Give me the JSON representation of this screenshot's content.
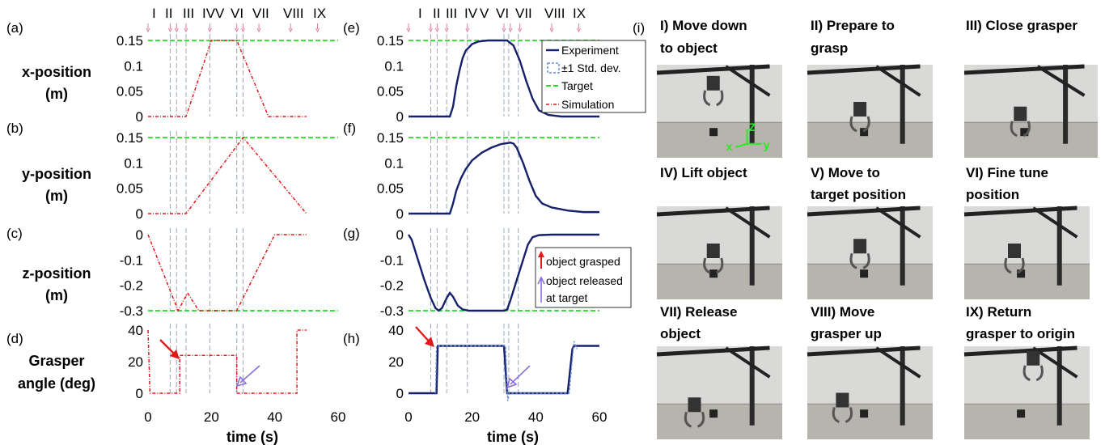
{
  "panel_labels": [
    "(a)",
    "(b)",
    "(c)",
    "(d)",
    "(e)",
    "(f)",
    "(g)",
    "(h)",
    "(i)"
  ],
  "row_labels": [
    [
      "x-position",
      "(m)"
    ],
    [
      "y-position",
      "(m)"
    ],
    [
      "z-position",
      "(m)"
    ],
    [
      "Grasper",
      "angle (deg)"
    ]
  ],
  "xlabel": "time (s)",
  "xticks": [
    0,
    20,
    40,
    60
  ],
  "phase_labels": [
    "I",
    "II",
    "III",
    "IV",
    "V",
    "VI",
    "VII",
    "VIII",
    "IX"
  ],
  "legend": [
    "Experiment",
    "±1 Std. dev.",
    "Target",
    "Simulation"
  ],
  "annotations": [
    "object grasped",
    "object released",
    "at target"
  ],
  "colors": {
    "experiment": "#16206b",
    "std": "#6b8fd6",
    "target": "#22dd22",
    "simulation": "#e0191b",
    "guide": "#9aaaba",
    "arrow_red": "#e0191b",
    "arrow_purple": "#8a6fe0",
    "phase_marker": "#e07aa0"
  },
  "photo_captions": [
    [
      "I) Move down",
      "to object"
    ],
    [
      "II) Prepare to",
      "grasp"
    ],
    [
      "III) Close grasper",
      ""
    ],
    [
      "IV) Lift object",
      ""
    ],
    [
      "V) Move to",
      "target position"
    ],
    [
      "VI) Fine tune",
      "position"
    ],
    [
      "VII) Release",
      "object"
    ],
    [
      "VIII) Move",
      "grasper up"
    ],
    [
      "IX) Return",
      "grasper  to origin"
    ]
  ],
  "axis_glyphs": {
    "z": "Z",
    "x": "x",
    "y": "y"
  },
  "chart_data": [
    {
      "id": "a",
      "type": "line",
      "ylabel": "x-position (m)",
      "yticks": [
        0,
        0.05,
        0.1,
        0.15
      ],
      "ylim": [
        0,
        0.15
      ],
      "xlim": [
        0,
        60
      ],
      "series": [
        {
          "name": "Target",
          "values": [
            [
              0,
              0.15
            ],
            [
              60,
              0.15
            ]
          ]
        },
        {
          "name": "Simulation",
          "values": [
            [
              0,
              0
            ],
            [
              12,
              0
            ],
            [
              20,
              0.15
            ],
            [
              28,
              0.15
            ],
            [
              38,
              0
            ],
            [
              50,
              0
            ]
          ]
        }
      ]
    },
    {
      "id": "b",
      "type": "line",
      "ylabel": "y-position (m)",
      "yticks": [
        0,
        0.05,
        0.1,
        0.15
      ],
      "ylim": [
        0,
        0.15
      ],
      "xlim": [
        0,
        60
      ],
      "series": [
        {
          "name": "Target",
          "values": [
            [
              0,
              0.15
            ],
            [
              60,
              0.15
            ]
          ]
        },
        {
          "name": "Simulation",
          "values": [
            [
              0,
              0
            ],
            [
              12,
              0
            ],
            [
              30,
              0.15
            ],
            [
              50,
              0
            ]
          ]
        }
      ]
    },
    {
      "id": "c",
      "type": "line",
      "ylabel": "z-position (m)",
      "yticks": [
        -0.3,
        -0.2,
        -0.1,
        0
      ],
      "ylim": [
        -0.3,
        0
      ],
      "xlim": [
        0,
        60
      ],
      "series": [
        {
          "name": "Target",
          "values": [
            [
              0,
              -0.3
            ],
            [
              60,
              -0.3
            ]
          ]
        },
        {
          "name": "Simulation",
          "values": [
            [
              0,
              0
            ],
            [
              9.5,
              -0.3
            ],
            [
              12.5,
              -0.23
            ],
            [
              16,
              -0.3
            ],
            [
              28,
              -0.3
            ],
            [
              40,
              0
            ],
            [
              50,
              0
            ]
          ]
        }
      ]
    },
    {
      "id": "d",
      "type": "line",
      "ylabel": "Grasper angle (deg)",
      "yticks": [
        0,
        20,
        40
      ],
      "ylim": [
        0,
        40
      ],
      "xlim": [
        0,
        60
      ],
      "series": [
        {
          "name": "Simulation",
          "values": [
            [
              0,
              40
            ],
            [
              0.6,
              0
            ],
            [
              10,
              0
            ],
            [
              10,
              24
            ],
            [
              28,
              24
            ],
            [
              28,
              0
            ],
            [
              47,
              0
            ],
            [
              47,
              40
            ],
            [
              50,
              40
            ]
          ]
        }
      ]
    },
    {
      "id": "e",
      "type": "line",
      "yticks": [
        0,
        0.05,
        0.1,
        0.15
      ],
      "ylim": [
        0,
        0.15
      ],
      "xlim": [
        0,
        60
      ],
      "series": [
        {
          "name": "Target",
          "values": [
            [
              0,
              0.15
            ],
            [
              60,
              0.15
            ]
          ]
        },
        {
          "name": "Experiment",
          "values": [
            [
              0,
              0
            ],
            [
              13,
              0
            ],
            [
              14,
              0.02
            ],
            [
              15,
              0.06
            ],
            [
              16,
              0.09
            ],
            [
              17,
              0.115
            ],
            [
              18,
              0.13
            ],
            [
              20,
              0.143
            ],
            [
              22,
              0.148
            ],
            [
              25,
              0.15
            ],
            [
              31,
              0.15
            ],
            [
              33,
              0.14
            ],
            [
              35,
              0.11
            ],
            [
              37,
              0.07
            ],
            [
              39,
              0.035
            ],
            [
              41,
              0.012
            ],
            [
              44,
              0.003
            ],
            [
              48,
              0
            ],
            [
              60,
              0
            ]
          ]
        }
      ]
    },
    {
      "id": "f",
      "type": "line",
      "yticks": [
        0,
        0.05,
        0.1,
        0.15
      ],
      "ylim": [
        0,
        0.15
      ],
      "xlim": [
        0,
        60
      ],
      "series": [
        {
          "name": "Target",
          "values": [
            [
              0,
              0.15
            ],
            [
              60,
              0.15
            ]
          ]
        },
        {
          "name": "Experiment",
          "values": [
            [
              0,
              0
            ],
            [
              13,
              0
            ],
            [
              14,
              0.02
            ],
            [
              15,
              0.045
            ],
            [
              16.5,
              0.07
            ],
            [
              18,
              0.088
            ],
            [
              20,
              0.105
            ],
            [
              23,
              0.12
            ],
            [
              26,
              0.13
            ],
            [
              29,
              0.137
            ],
            [
              32,
              0.14
            ],
            [
              33,
              0.138
            ],
            [
              34,
              0.13
            ],
            [
              36,
              0.1
            ],
            [
              38,
              0.065
            ],
            [
              40,
              0.035
            ],
            [
              42,
              0.02
            ],
            [
              45,
              0.012
            ],
            [
              50,
              0.006
            ],
            [
              55,
              0.003
            ],
            [
              60,
              0.003
            ]
          ]
        }
      ]
    },
    {
      "id": "g",
      "type": "line",
      "yticks": [
        -0.3,
        -0.2,
        -0.1,
        0
      ],
      "ylim": [
        -0.3,
        0
      ],
      "xlim": [
        0,
        60
      ],
      "series": [
        {
          "name": "Target",
          "values": [
            [
              0,
              -0.3
            ],
            [
              60,
              -0.3
            ]
          ]
        },
        {
          "name": "Experiment",
          "values": [
            [
              0,
              0
            ],
            [
              1,
              -0.02
            ],
            [
              3,
              -0.1
            ],
            [
              5,
              -0.18
            ],
            [
              7,
              -0.25
            ],
            [
              8.5,
              -0.29
            ],
            [
              9.5,
              -0.3
            ],
            [
              10.5,
              -0.29
            ],
            [
              12,
              -0.25
            ],
            [
              13,
              -0.23
            ],
            [
              14,
              -0.245
            ],
            [
              15.5,
              -0.28
            ],
            [
              17,
              -0.295
            ],
            [
              19,
              -0.3
            ],
            [
              30,
              -0.3
            ],
            [
              31,
              -0.295
            ],
            [
              32,
              -0.26
            ],
            [
              34,
              -0.18
            ],
            [
              36,
              -0.1
            ],
            [
              37.5,
              -0.04
            ],
            [
              39,
              -0.01
            ],
            [
              41,
              -0.002
            ],
            [
              45,
              0
            ],
            [
              60,
              0
            ]
          ]
        }
      ]
    },
    {
      "id": "h",
      "type": "line",
      "yticks": [
        0,
        20,
        40
      ],
      "ylim": [
        0,
        40
      ],
      "xlim": [
        0,
        60
      ],
      "series": [
        {
          "name": "Experiment",
          "values": [
            [
              0,
              0
            ],
            [
              8.8,
              0
            ],
            [
              9.2,
              30
            ],
            [
              30,
              30
            ],
            [
              31,
              0
            ],
            [
              50,
              0
            ],
            [
              51.5,
              28
            ],
            [
              52,
              30
            ],
            [
              60,
              30
            ]
          ]
        },
        {
          "name": "±1 Std. dev.",
          "values": [
            [
              8.5,
              0
            ],
            [
              8.8,
              30
            ],
            [
              30.5,
              30
            ],
            [
              31.2,
              -5
            ],
            [
              31.6,
              0
            ],
            [
              50.5,
              0
            ],
            [
              52,
              33
            ],
            [
              53,
              28
            ]
          ]
        }
      ]
    }
  ]
}
